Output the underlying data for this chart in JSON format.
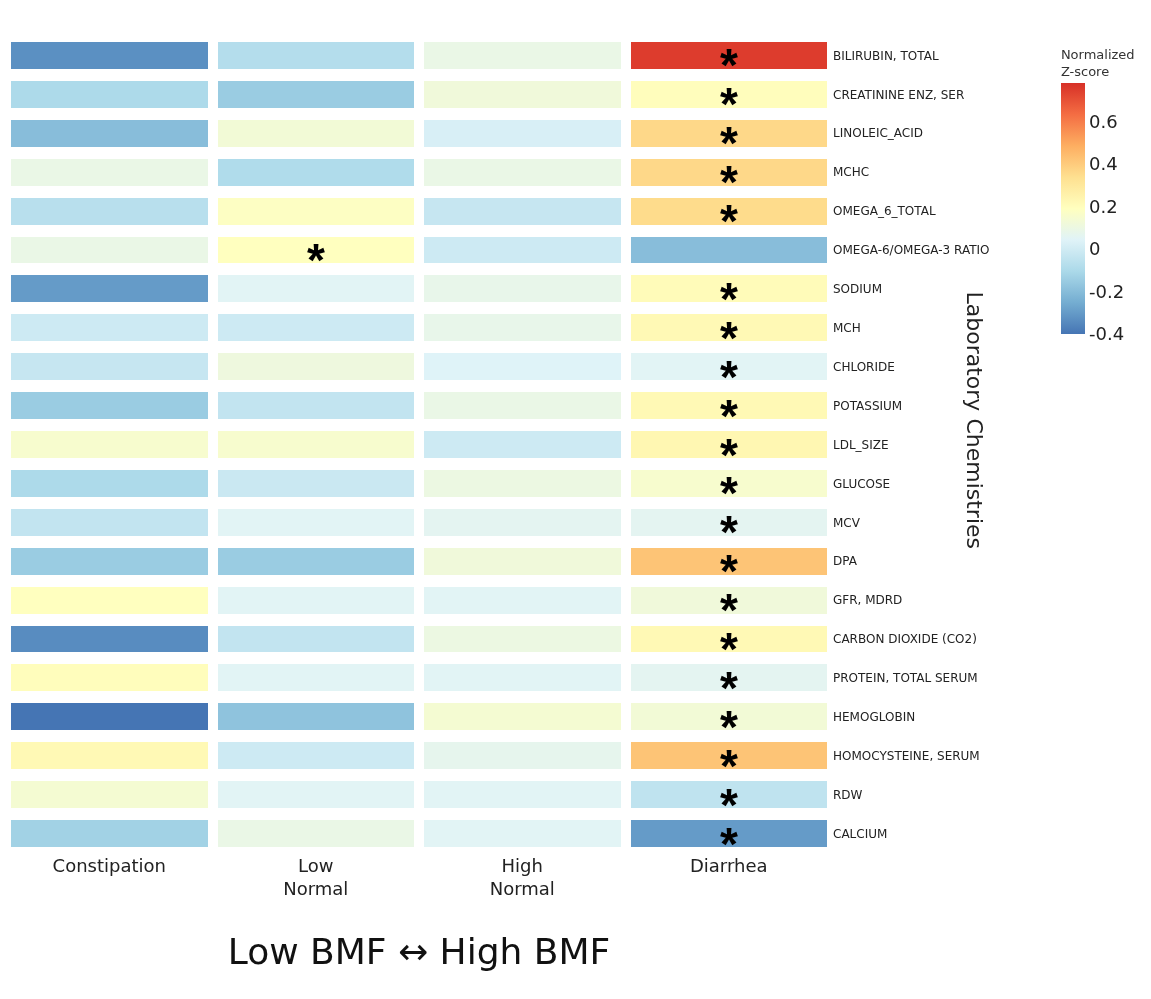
{
  "chart_data": {
    "type": "heatmap",
    "xlabel": "Low BMF ↔ High BMF",
    "ylabel": "Laboratory Chemistries",
    "clabel": "Normalized\nZ-score",
    "categories": [
      "Constipation",
      "Low\nNormal",
      "High\nNormal",
      "Diarrhea"
    ],
    "y_categories": [
      "BILIRUBIN, TOTAL",
      "CREATININE ENZ, SER",
      "LINOLEIC_ACID",
      "MCHC",
      "OMEGA_6_TOTAL",
      "OMEGA-6/OMEGA-3 RATIO",
      "SODIUM",
      "MCH",
      "CHLORIDE",
      "POTASSIUM",
      "LDL_SIZE",
      "GLUCOSE",
      "MCV",
      "DPA",
      "GFR, MDRD",
      "CARBON DIOXIDE (CO2)",
      "PROTEIN, TOTAL SERUM",
      "HEMOGLOBIN",
      "HOMOCYSTEINE, SERUM",
      "RDW",
      "CALCIUM"
    ],
    "cells": [
      [
        -0.33,
        -0.08,
        0.09,
        0.75
      ],
      [
        -0.1,
        -0.15,
        0.12,
        0.2
      ],
      [
        -0.2,
        0.13,
        0.02,
        0.36
      ],
      [
        0.09,
        -0.09,
        0.09,
        0.36
      ],
      [
        -0.07,
        0.18,
        -0.03,
        0.35
      ],
      [
        0.09,
        0.19,
        -0.01,
        -0.2
      ],
      [
        -0.3,
        0.05,
        0.08,
        0.21
      ],
      [
        -0.01,
        -0.01,
        0.08,
        0.22
      ],
      [
        -0.03,
        0.11,
        0.04,
        0.05
      ],
      [
        -0.15,
        -0.04,
        0.09,
        0.22
      ],
      [
        0.15,
        0.15,
        -0.01,
        0.23
      ],
      [
        -0.1,
        -0.02,
        0.1,
        0.15
      ],
      [
        -0.04,
        0.05,
        0.06,
        0.06
      ],
      [
        -0.15,
        -0.15,
        0.12,
        0.42
      ],
      [
        0.19,
        0.05,
        0.05,
        0.12
      ],
      [
        -0.34,
        -0.04,
        0.1,
        0.22
      ],
      [
        0.2,
        0.05,
        0.05,
        0.06
      ],
      [
        -0.4,
        -0.18,
        0.14,
        0.13
      ],
      [
        0.22,
        -0.01,
        0.07,
        0.42
      ],
      [
        0.14,
        0.05,
        0.05,
        -0.05
      ],
      [
        -0.13,
        0.09,
        0.05,
        -0.3
      ]
    ],
    "cell_labels": [
      [
        null,
        null,
        null,
        "*"
      ],
      [
        null,
        null,
        null,
        "*"
      ],
      [
        null,
        null,
        null,
        "*"
      ],
      [
        null,
        null,
        null,
        "*"
      ],
      [
        null,
        null,
        null,
        "*"
      ],
      [
        null,
        "*",
        null,
        null
      ],
      [
        null,
        null,
        null,
        "*"
      ],
      [
        null,
        null,
        null,
        "*"
      ],
      [
        null,
        null,
        null,
        "*"
      ],
      [
        null,
        null,
        null,
        "*"
      ],
      [
        null,
        null,
        null,
        "*"
      ],
      [
        null,
        null,
        null,
        "*"
      ],
      [
        null,
        null,
        null,
        "*"
      ],
      [
        null,
        null,
        null,
        "*"
      ],
      [
        null,
        null,
        null,
        "*"
      ],
      [
        null,
        null,
        null,
        "*"
      ],
      [
        null,
        null,
        null,
        "*"
      ],
      [
        null,
        null,
        null,
        "*"
      ],
      [
        null,
        null,
        null,
        "*"
      ],
      [
        null,
        null,
        null,
        "*"
      ],
      [
        null,
        null,
        null,
        "*"
      ]
    ],
    "clim": [
      -0.4,
      0.78
    ],
    "cticks": [
      -0.4,
      -0.2,
      0,
      0.2,
      0.4,
      0.6
    ]
  }
}
